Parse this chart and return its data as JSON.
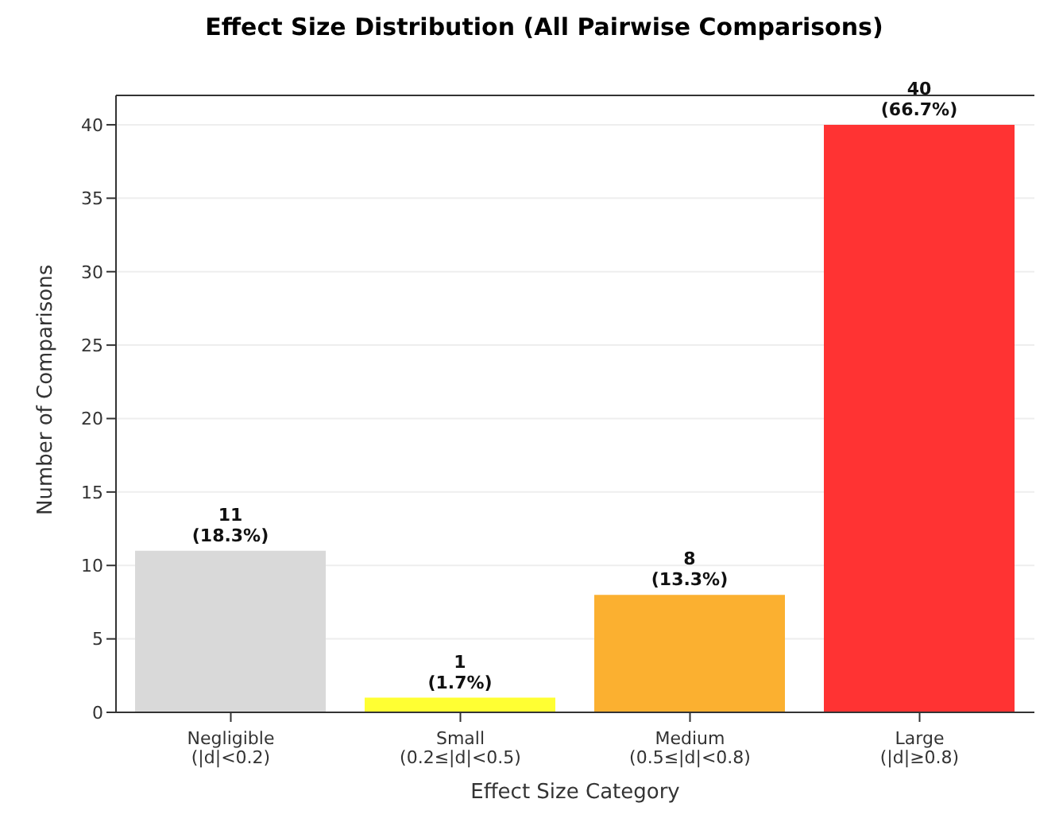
{
  "chart_data": {
    "type": "bar",
    "title": "Effect Size Distribution (All Pairwise Comparisons)",
    "xlabel": "Effect Size Category",
    "ylabel": "Number of Comparisons",
    "categories": [
      "Negligible\n(|d|<0.2)",
      "Small\n(0.2≤|d|<0.5)",
      "Medium\n(0.5≤|d|<0.8)",
      "Large\n(|d|≥0.8)"
    ],
    "values": [
      11,
      1,
      8,
      40
    ],
    "colors": [
      "#d9d9d9",
      "#ffff33",
      "#fbb030",
      "#ff3333"
    ],
    "value_labels": [
      "11\n(18.3%)",
      "1\n(1.7%)",
      "8\n(13.3%)",
      "40\n(66.7%)"
    ],
    "ylim": [
      0,
      42
    ],
    "yticks": [
      0,
      5,
      10,
      15,
      20,
      25,
      30,
      35,
      40
    ],
    "grid": "y"
  }
}
